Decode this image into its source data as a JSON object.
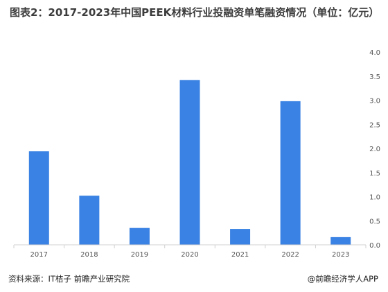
{
  "chart_data": {
    "type": "bar",
    "title": "图表2：2017-2023年中国PEEK材料行业投融资单笔融资情况（单位：亿元）",
    "categories": [
      "2017",
      "2018",
      "2019",
      "2020",
      "2021",
      "2022",
      "2023"
    ],
    "values": [
      1.94,
      1.02,
      0.35,
      3.42,
      0.33,
      2.98,
      0.16
    ],
    "y_ticks": [
      "0.0",
      "0.5",
      "1.0",
      "1.5",
      "2.0",
      "2.5",
      "3.0",
      "3.5",
      "4.0"
    ],
    "ylim": [
      0,
      4
    ],
    "y_axis_side": "right",
    "grid": false,
    "bar_color": "#3a82e3"
  },
  "footer": {
    "source": "资料来源：IT桔子 前瞻产业研究院",
    "credit": "@前瞻经济学人APP"
  }
}
